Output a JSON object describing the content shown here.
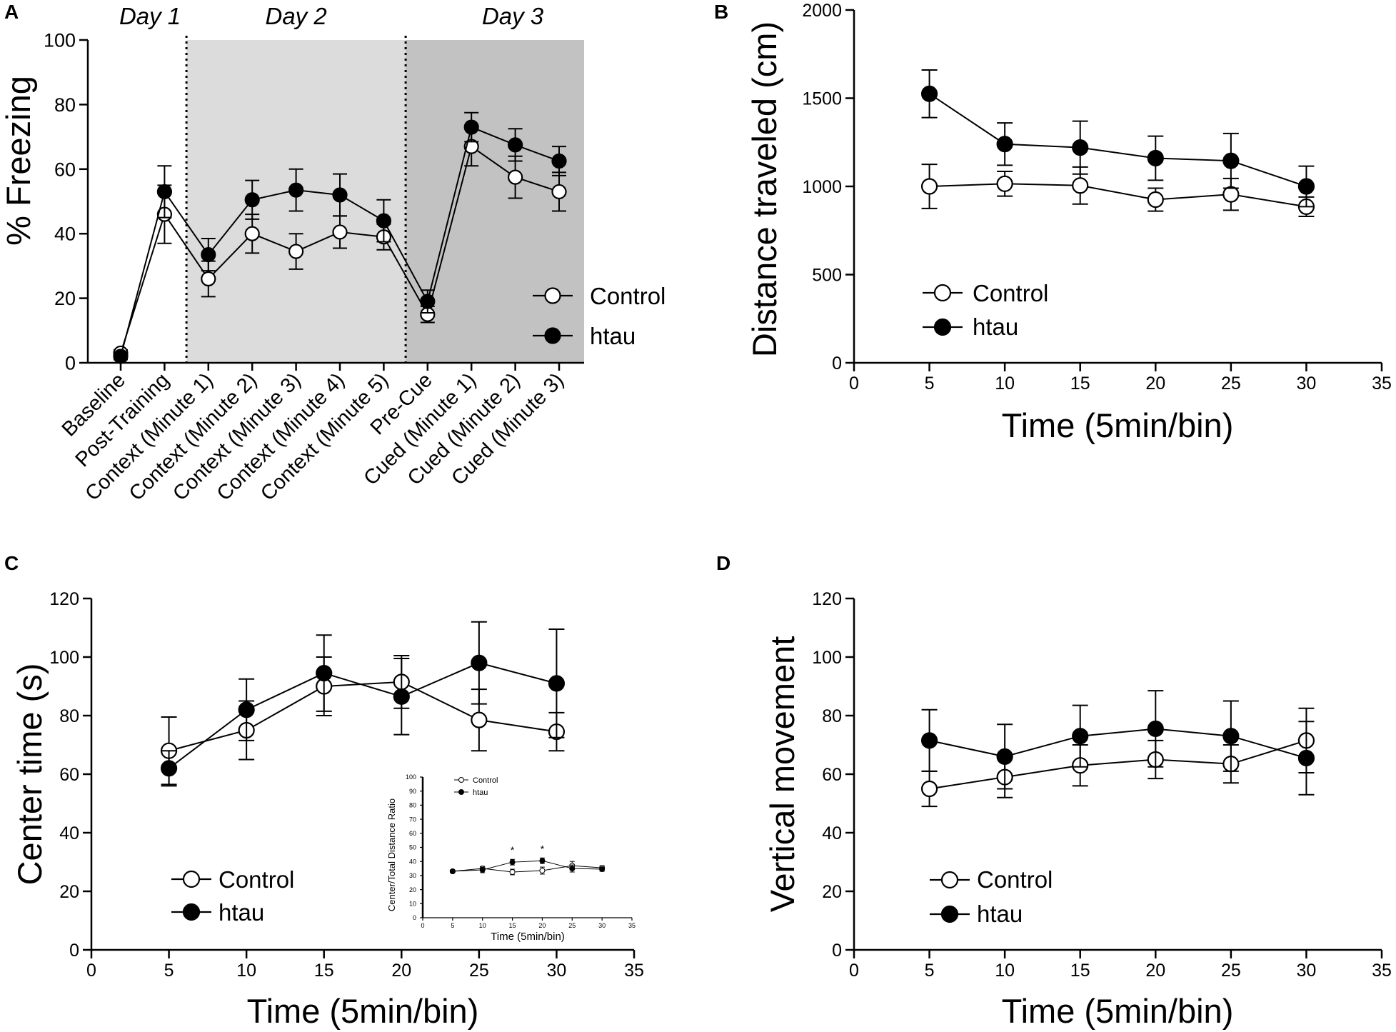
{
  "colors": {
    "day2_shade": "#dcdcdc",
    "day3_shade": "#c2c2c2",
    "control_fill": "#ffffff",
    "htau_fill": "#000000",
    "line": "#000000"
  },
  "chart_data": [
    {
      "id": "A",
      "panel_label": "A",
      "type": "line",
      "title": "",
      "ylabel": "% Freezing",
      "xlabel": "",
      "ylim": [
        0,
        100
      ],
      "yticks": [
        0,
        20,
        40,
        60,
        80,
        100
      ],
      "categories": [
        "Baseline",
        "Post-Training",
        "Context (Minute 1)",
        "Context (Minute 2)",
        "Context (Minute 3)",
        "Context (Minute 4)",
        "Context (Minute 5)",
        "Pre-Cue",
        "Cued (Minute 1)",
        "Cued (Minute 2)",
        "Cued (Minute 3)"
      ],
      "day_labels": [
        "Day 1",
        "Day 2",
        "Day 3"
      ],
      "legend": [
        "Control",
        "htau"
      ],
      "legend_position": "lower-right",
      "series": [
        {
          "name": "Control",
          "values": [
            3,
            46,
            26,
            40,
            34.5,
            40.5,
            39,
            15,
            67,
            57.5,
            53
          ],
          "errors": [
            1,
            9,
            5.5,
            6,
            5.5,
            5,
            4,
            2.5,
            6,
            6.5,
            6
          ]
        },
        {
          "name": "htau",
          "values": [
            2,
            53,
            33.5,
            50.5,
            53.5,
            52,
            44,
            19,
            73,
            67.5,
            62.5
          ],
          "errors": [
            1,
            8,
            5,
            6,
            6.5,
            6.5,
            6.5,
            3.5,
            4.5,
            5,
            4.5
          ]
        }
      ]
    },
    {
      "id": "B",
      "panel_label": "B",
      "type": "line",
      "ylabel": "Distance traveled (cm)",
      "xlabel": "Time (5min/bin)",
      "xlim": [
        0,
        35
      ],
      "xticks": [
        0,
        5,
        10,
        15,
        20,
        25,
        30,
        35
      ],
      "ylim": [
        0,
        2000
      ],
      "yticks": [
        0,
        500,
        1000,
        1500,
        2000
      ],
      "x": [
        5,
        10,
        15,
        20,
        25,
        30
      ],
      "legend": [
        "Control",
        "htau"
      ],
      "legend_position": "lower-left",
      "series": [
        {
          "name": "Control",
          "values": [
            1000,
            1015,
            1005,
            925,
            955,
            885
          ],
          "errors": [
            125,
            70,
            105,
            65,
            90,
            55
          ]
        },
        {
          "name": "htau",
          "values": [
            1525,
            1240,
            1220,
            1160,
            1145,
            1000
          ],
          "errors": [
            135,
            120,
            150,
            125,
            155,
            115
          ]
        }
      ]
    },
    {
      "id": "C",
      "panel_label": "C",
      "type": "line",
      "ylabel": "Center time (s)",
      "xlabel": "Time (5min/bin)",
      "xlim": [
        0,
        35
      ],
      "xticks": [
        0,
        5,
        10,
        15,
        20,
        25,
        30,
        35
      ],
      "ylim": [
        0,
        120
      ],
      "yticks": [
        0,
        20,
        40,
        60,
        80,
        100,
        120
      ],
      "x": [
        5,
        10,
        15,
        20,
        25,
        30
      ],
      "legend": [
        "Control",
        "htau"
      ],
      "legend_position": "lower-left",
      "series": [
        {
          "name": "Control",
          "values": [
            68,
            75,
            90,
            91.5,
            78.5,
            74.5
          ],
          "errors": [
            11.5,
            10,
            10,
            9,
            10.5,
            6.5
          ]
        },
        {
          "name": "htau",
          "values": [
            62,
            82,
            94.5,
            86.5,
            98,
            91
          ],
          "errors": [
            6,
            10.5,
            13,
            13,
            14,
            18.5
          ]
        }
      ],
      "inset": {
        "type": "line",
        "ylabel": "Center/Total Distance Ratio",
        "xlabel": "Time (5min/bin)",
        "xlim": [
          0,
          35
        ],
        "xticks": [
          0,
          5,
          10,
          15,
          20,
          25,
          30,
          35
        ],
        "ylim": [
          0,
          100
        ],
        "yticks": [
          0,
          10,
          20,
          30,
          40,
          50,
          60,
          70,
          80,
          90,
          100
        ],
        "x": [
          5,
          10,
          15,
          20,
          25,
          30
        ],
        "legend": [
          "Control",
          "htau"
        ],
        "significance": [
          {
            "x": 15,
            "label": "*"
          },
          {
            "x": 20,
            "label": "*"
          }
        ],
        "series": [
          {
            "name": "Control",
            "values": [
              33,
              35,
              32.5,
              33.5,
              37,
              35.5
            ],
            "errors": [
              1,
              1.5,
              2,
              2.5,
              3,
              1.5
            ]
          },
          {
            "name": "htau",
            "values": [
              33,
              34,
              39.5,
              40.5,
              35,
              34.5
            ],
            "errors": [
              1,
              2,
              2,
              2,
              2.5,
              1.5
            ]
          }
        ]
      }
    },
    {
      "id": "D",
      "panel_label": "D",
      "type": "line",
      "ylabel": "Vertical movement",
      "xlabel": "Time (5min/bin)",
      "xlim": [
        0,
        35
      ],
      "xticks": [
        0,
        5,
        10,
        15,
        20,
        25,
        30,
        35
      ],
      "ylim": [
        0,
        120
      ],
      "yticks": [
        0,
        20,
        40,
        60,
        80,
        100,
        120
      ],
      "x": [
        5,
        10,
        15,
        20,
        25,
        30
      ],
      "legend": [
        "Control",
        "htau"
      ],
      "legend_position": "lower-left",
      "series": [
        {
          "name": "Control",
          "values": [
            55,
            59,
            63,
            65,
            63.5,
            71.5
          ],
          "errors": [
            6,
            7,
            7,
            6.5,
            6.5,
            11
          ]
        },
        {
          "name": "htau",
          "values": [
            71.5,
            66,
            73,
            75.5,
            73,
            65.5
          ],
          "errors": [
            10.5,
            11,
            10.5,
            13,
            12,
            12.5
          ]
        }
      ]
    }
  ]
}
